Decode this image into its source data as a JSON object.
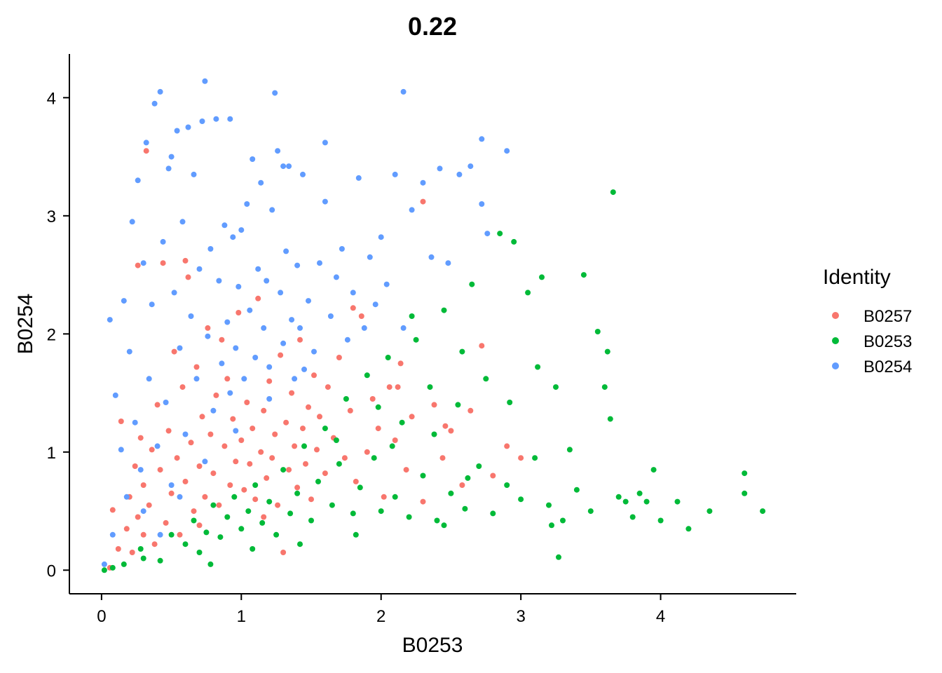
{
  "chart_data": {
    "type": "scatter",
    "title": "0.22",
    "xlabel": "B0253",
    "ylabel": "B0254",
    "xlim": [
      -0.23,
      4.97
    ],
    "ylim": [
      -0.2,
      4.37
    ],
    "xticks": [
      "0",
      "1",
      "2",
      "3",
      "4"
    ],
    "yticks": [
      "0",
      "1",
      "2",
      "3",
      "4"
    ],
    "grid": false,
    "legend": {
      "title": "Identity",
      "placement": "right",
      "entries": [
        "B0257",
        "B0253",
        "B0254"
      ]
    },
    "series": [
      {
        "name": "B0257",
        "color": "#F8766D",
        "points": [
          [
            0.06,
            0.02
          ],
          [
            0.08,
            0.51
          ],
          [
            0.12,
            0.18
          ],
          [
            0.14,
            1.26
          ],
          [
            0.18,
            0.35
          ],
          [
            0.2,
            0.62
          ],
          [
            0.22,
            0.15
          ],
          [
            0.24,
            0.88
          ],
          [
            0.26,
            0.45
          ],
          [
            0.28,
            1.12
          ],
          [
            0.3,
            0.3
          ],
          [
            0.3,
            0.72
          ],
          [
            0.32,
            3.55
          ],
          [
            0.34,
            0.55
          ],
          [
            0.36,
            1.02
          ],
          [
            0.38,
            0.22
          ],
          [
            0.4,
            1.4
          ],
          [
            0.42,
            0.85
          ],
          [
            0.44,
            2.6
          ],
          [
            0.46,
            0.4
          ],
          [
            0.48,
            1.18
          ],
          [
            0.5,
            0.65
          ],
          [
            0.52,
            1.85
          ],
          [
            0.54,
            0.95
          ],
          [
            0.56,
            0.3
          ],
          [
            0.58,
            1.55
          ],
          [
            0.6,
            0.75
          ],
          [
            0.62,
            2.48
          ],
          [
            0.64,
            1.08
          ],
          [
            0.66,
            0.5
          ],
          [
            0.68,
            1.72
          ],
          [
            0.7,
            0.88
          ],
          [
            0.72,
            1.3
          ],
          [
            0.74,
            0.62
          ],
          [
            0.76,
            2.05
          ],
          [
            0.78,
            1.15
          ],
          [
            0.8,
            0.82
          ],
          [
            0.82,
            1.48
          ],
          [
            0.84,
            0.55
          ],
          [
            0.86,
            1.95
          ],
          [
            0.88,
            1.05
          ],
          [
            0.9,
            1.62
          ],
          [
            0.92,
            0.72
          ],
          [
            0.94,
            1.28
          ],
          [
            0.96,
            0.92
          ],
          [
            0.98,
            2.18
          ],
          [
            1.0,
            1.1
          ],
          [
            1.02,
            0.68
          ],
          [
            1.04,
            1.42
          ],
          [
            1.06,
            0.9
          ],
          [
            1.08,
            1.2
          ],
          [
            1.1,
            0.6
          ],
          [
            1.12,
            2.3
          ],
          [
            1.14,
            1.0
          ],
          [
            1.16,
            1.35
          ],
          [
            1.18,
            0.78
          ],
          [
            1.2,
            1.6
          ],
          [
            1.22,
            0.95
          ],
          [
            1.24,
            1.15
          ],
          [
            1.26,
            0.55
          ],
          [
            1.28,
            1.82
          ],
          [
            1.3,
            0.15
          ],
          [
            1.32,
            1.25
          ],
          [
            1.34,
            0.85
          ],
          [
            1.36,
            1.5
          ],
          [
            1.38,
            1.05
          ],
          [
            1.4,
            0.7
          ],
          [
            1.42,
            1.95
          ],
          [
            1.44,
            1.2
          ],
          [
            1.46,
            0.9
          ],
          [
            1.48,
            1.38
          ],
          [
            1.5,
            0.6
          ],
          [
            1.52,
            1.65
          ],
          [
            1.54,
            1.02
          ],
          [
            1.56,
            1.3
          ],
          [
            1.6,
            0.82
          ],
          [
            1.62,
            1.55
          ],
          [
            1.66,
            1.12
          ],
          [
            1.7,
            1.8
          ],
          [
            1.74,
            0.95
          ],
          [
            1.78,
            1.35
          ],
          [
            1.82,
            0.75
          ],
          [
            1.86,
            2.15
          ],
          [
            1.9,
            1.0
          ],
          [
            1.94,
            1.45
          ],
          [
            1.98,
            1.2
          ],
          [
            2.02,
            0.62
          ],
          [
            2.06,
            1.55
          ],
          [
            2.1,
            1.1
          ],
          [
            2.14,
            1.75
          ],
          [
            2.18,
            0.85
          ],
          [
            2.22,
            1.3
          ],
          [
            2.3,
            0.58
          ],
          [
            2.38,
            1.4
          ],
          [
            2.44,
            0.95
          ],
          [
            2.5,
            1.18
          ],
          [
            2.58,
            0.72
          ],
          [
            2.64,
            1.35
          ],
          [
            2.72,
            1.9
          ],
          [
            2.8,
            0.8
          ],
          [
            2.9,
            1.05
          ],
          [
            3.0,
            0.95
          ],
          [
            2.3,
            3.12
          ],
          [
            0.26,
            2.58
          ],
          [
            0.6,
            2.62
          ],
          [
            1.8,
            2.22
          ],
          [
            2.12,
            1.55
          ],
          [
            2.46,
            1.22
          ],
          [
            1.16,
            0.45
          ],
          [
            0.7,
            0.38
          ]
        ]
      },
      {
        "name": "B0253",
        "color": "#00BA38",
        "points": [
          [
            0.02,
            0.0
          ],
          [
            0.08,
            0.02
          ],
          [
            0.16,
            0.05
          ],
          [
            0.28,
            0.18
          ],
          [
            0.3,
            0.1
          ],
          [
            0.42,
            0.08
          ],
          [
            0.5,
            0.3
          ],
          [
            0.6,
            0.22
          ],
          [
            0.66,
            0.42
          ],
          [
            0.7,
            0.15
          ],
          [
            0.75,
            0.32
          ],
          [
            0.8,
            0.55
          ],
          [
            0.85,
            0.28
          ],
          [
            0.9,
            0.45
          ],
          [
            0.95,
            0.62
          ],
          [
            1.0,
            0.35
          ],
          [
            1.05,
            0.5
          ],
          [
            1.1,
            0.72
          ],
          [
            1.15,
            0.4
          ],
          [
            1.2,
            0.58
          ],
          [
            1.25,
            0.3
          ],
          [
            1.3,
            0.85
          ],
          [
            1.35,
            0.48
          ],
          [
            1.4,
            0.65
          ],
          [
            1.45,
            1.05
          ],
          [
            1.5,
            0.42
          ],
          [
            1.55,
            0.75
          ],
          [
            1.6,
            1.2
          ],
          [
            1.65,
            0.55
          ],
          [
            1.7,
            0.9
          ],
          [
            1.75,
            1.45
          ],
          [
            1.8,
            0.48
          ],
          [
            1.85,
            0.7
          ],
          [
            1.9,
            1.65
          ],
          [
            1.95,
            0.95
          ],
          [
            2.0,
            0.5
          ],
          [
            2.05,
            1.8
          ],
          [
            2.1,
            0.62
          ],
          [
            2.15,
            1.25
          ],
          [
            2.2,
            0.45
          ],
          [
            2.25,
            1.95
          ],
          [
            2.3,
            0.8
          ],
          [
            2.35,
            1.55
          ],
          [
            2.4,
            0.42
          ],
          [
            2.45,
            2.2
          ],
          [
            2.5,
            0.65
          ],
          [
            2.55,
            1.4
          ],
          [
            2.6,
            0.52
          ],
          [
            2.65,
            2.42
          ],
          [
            2.7,
            0.88
          ],
          [
            2.75,
            1.62
          ],
          [
            2.8,
            0.48
          ],
          [
            2.85,
            2.85
          ],
          [
            2.9,
            0.72
          ],
          [
            2.95,
            2.78
          ],
          [
            3.0,
            0.6
          ],
          [
            3.05,
            2.35
          ],
          [
            3.1,
            0.95
          ],
          [
            3.15,
            2.48
          ],
          [
            3.2,
            0.55
          ],
          [
            3.25,
            1.55
          ],
          [
            3.3,
            0.42
          ],
          [
            3.35,
            1.02
          ],
          [
            3.4,
            0.68
          ],
          [
            3.45,
            2.5
          ],
          [
            3.5,
            0.5
          ],
          [
            3.55,
            2.02
          ],
          [
            3.6,
            1.55
          ],
          [
            3.62,
            1.85
          ],
          [
            3.64,
            1.28
          ],
          [
            3.66,
            3.2
          ],
          [
            3.7,
            0.62
          ],
          [
            3.75,
            0.58
          ],
          [
            3.8,
            0.45
          ],
          [
            3.85,
            0.65
          ],
          [
            3.9,
            0.58
          ],
          [
            3.95,
            0.85
          ],
          [
            4.0,
            0.42
          ],
          [
            4.12,
            0.58
          ],
          [
            4.2,
            0.35
          ],
          [
            4.35,
            0.5
          ],
          [
            4.6,
            0.82
          ],
          [
            4.6,
            0.65
          ],
          [
            4.73,
            0.5
          ],
          [
            3.27,
            0.11
          ],
          [
            2.45,
            0.38
          ],
          [
            1.82,
            0.3
          ],
          [
            1.42,
            0.22
          ],
          [
            1.08,
            0.18
          ],
          [
            0.78,
            0.05
          ],
          [
            2.08,
            1.05
          ],
          [
            2.38,
            1.15
          ],
          [
            2.58,
            1.85
          ],
          [
            2.92,
            1.42
          ],
          [
            3.12,
            1.72
          ],
          [
            1.98,
            1.38
          ],
          [
            1.68,
            1.1
          ],
          [
            2.22,
            2.15
          ],
          [
            2.62,
            0.78
          ],
          [
            3.22,
            0.38
          ]
        ]
      },
      {
        "name": "B0254",
        "color": "#619CFF",
        "points": [
          [
            0.02,
            0.05
          ],
          [
            0.06,
            2.12
          ],
          [
            0.08,
            0.3
          ],
          [
            0.1,
            1.48
          ],
          [
            0.14,
            1.02
          ],
          [
            0.16,
            2.28
          ],
          [
            0.18,
            0.62
          ],
          [
            0.2,
            1.85
          ],
          [
            0.22,
            2.95
          ],
          [
            0.24,
            1.25
          ],
          [
            0.26,
            3.3
          ],
          [
            0.28,
            0.85
          ],
          [
            0.3,
            2.6
          ],
          [
            0.32,
            3.62
          ],
          [
            0.34,
            1.62
          ],
          [
            0.36,
            2.25
          ],
          [
            0.38,
            3.95
          ],
          [
            0.4,
            1.05
          ],
          [
            0.42,
            4.05
          ],
          [
            0.44,
            2.78
          ],
          [
            0.46,
            1.42
          ],
          [
            0.48,
            3.4
          ],
          [
            0.5,
            0.72
          ],
          [
            0.52,
            2.35
          ],
          [
            0.54,
            3.72
          ],
          [
            0.56,
            1.88
          ],
          [
            0.58,
            2.95
          ],
          [
            0.6,
            1.15
          ],
          [
            0.62,
            3.75
          ],
          [
            0.64,
            2.15
          ],
          [
            0.66,
            3.35
          ],
          [
            0.68,
            1.62
          ],
          [
            0.7,
            2.55
          ],
          [
            0.72,
            3.8
          ],
          [
            0.74,
            4.14
          ],
          [
            0.76,
            1.98
          ],
          [
            0.78,
            2.72
          ],
          [
            0.8,
            1.35
          ],
          [
            0.82,
            3.82
          ],
          [
            0.84,
            2.45
          ],
          [
            0.86,
            1.75
          ],
          [
            0.88,
            2.92
          ],
          [
            0.9,
            2.1
          ],
          [
            0.92,
            1.5
          ],
          [
            0.94,
            2.82
          ],
          [
            0.96,
            1.88
          ],
          [
            0.98,
            2.4
          ],
          [
            1.0,
            2.88
          ],
          [
            1.02,
            1.62
          ],
          [
            1.04,
            3.1
          ],
          [
            1.06,
            2.2
          ],
          [
            1.08,
            3.48
          ],
          [
            1.1,
            1.8
          ],
          [
            1.12,
            2.55
          ],
          [
            1.14,
            3.28
          ],
          [
            1.16,
            2.05
          ],
          [
            1.18,
            2.45
          ],
          [
            1.2,
            1.72
          ],
          [
            1.22,
            3.05
          ],
          [
            1.24,
            4.04
          ],
          [
            1.26,
            3.55
          ],
          [
            1.28,
            2.35
          ],
          [
            1.3,
            1.92
          ],
          [
            1.32,
            2.7
          ],
          [
            1.34,
            3.42
          ],
          [
            1.36,
            2.12
          ],
          [
            1.38,
            1.62
          ],
          [
            1.4,
            2.58
          ],
          [
            1.42,
            2.05
          ],
          [
            1.44,
            3.35
          ],
          [
            1.48,
            2.28
          ],
          [
            1.52,
            1.85
          ],
          [
            1.56,
            2.6
          ],
          [
            1.6,
            3.12
          ],
          [
            1.64,
            2.15
          ],
          [
            1.68,
            2.48
          ],
          [
            1.72,
            2.72
          ],
          [
            1.76,
            1.95
          ],
          [
            1.8,
            2.35
          ],
          [
            1.84,
            3.32
          ],
          [
            1.88,
            2.05
          ],
          [
            1.92,
            2.65
          ],
          [
            1.96,
            2.25
          ],
          [
            2.0,
            2.82
          ],
          [
            2.04,
            2.42
          ],
          [
            2.1,
            3.35
          ],
          [
            2.16,
            2.05
          ],
          [
            2.22,
            3.05
          ],
          [
            2.3,
            3.28
          ],
          [
            2.36,
            2.65
          ],
          [
            2.42,
            3.4
          ],
          [
            2.48,
            2.6
          ],
          [
            2.56,
            3.35
          ],
          [
            2.64,
            3.42
          ],
          [
            2.72,
            3.65
          ],
          [
            2.72,
            3.1
          ],
          [
            2.76,
            2.85
          ],
          [
            2.9,
            3.55
          ],
          [
            2.16,
            4.05
          ],
          [
            1.6,
            3.62
          ],
          [
            1.3,
            3.42
          ],
          [
            0.92,
            3.82
          ],
          [
            0.5,
            3.5
          ],
          [
            0.3,
            0.5
          ],
          [
            0.42,
            0.3
          ],
          [
            0.56,
            0.62
          ],
          [
            0.74,
            0.92
          ],
          [
            0.96,
            1.18
          ],
          [
            1.2,
            1.45
          ],
          [
            1.45,
            1.7
          ]
        ]
      }
    ]
  }
}
